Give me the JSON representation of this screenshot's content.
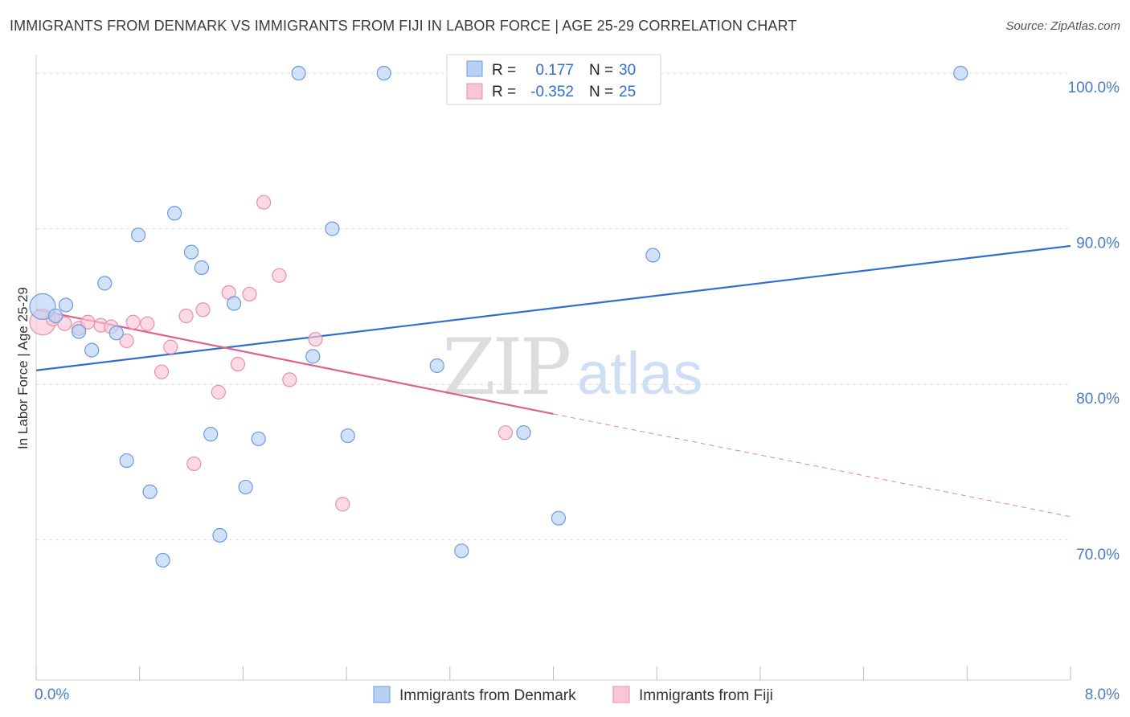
{
  "title": "IMMIGRANTS FROM DENMARK VS IMMIGRANTS FROM FIJI IN LABOR FORCE | AGE 25-29 CORRELATION CHART",
  "source": "Source: ZipAtlas.com",
  "watermark": {
    "zip": "ZIP",
    "atlas": "atlas"
  },
  "colors": {
    "denmark_fill": "#b8d1f3",
    "denmark_stroke": "#6a9be0",
    "denmark_line": "#2f6fd0",
    "fiji_fill": "#f9c6d5",
    "fiji_stroke": "#e88fab",
    "fiji_line": "#e0608c"
  },
  "legend": {
    "rows": [
      {
        "r_label": "R =",
        "r_value": "0.177",
        "n_label": "N =",
        "n_value": "30"
      },
      {
        "r_label": "R =",
        "r_value": "-0.352",
        "n_label": "N =",
        "n_value": "25"
      }
    ]
  },
  "chart_data": {
    "type": "scatter",
    "title": "IMMIGRANTS FROM DENMARK VS IMMIGRANTS FROM FIJI IN LABOR FORCE | AGE 25-29 CORRELATION CHART",
    "xlabel": "",
    "ylabel": "In Labor Force | Age 25-29",
    "xlim": [
      0.0,
      8.0
    ],
    "ylim": [
      61.0,
      101.5
    ],
    "x_tick_labels": [
      "0.0%",
      "8.0%"
    ],
    "y_ticks": [
      70,
      80,
      90,
      100
    ],
    "y_tick_labels": [
      "70.0%",
      "80.0%",
      "90.0%",
      "100.0%"
    ],
    "grid": true,
    "legend_position": "bottom",
    "series": [
      {
        "name": "Immigrants from Denmark",
        "points": [
          [
            0.05,
            85.0
          ],
          [
            0.15,
            84.4
          ],
          [
            0.23,
            85.1
          ],
          [
            0.33,
            83.4
          ],
          [
            0.43,
            82.2
          ],
          [
            0.53,
            86.5
          ],
          [
            0.62,
            83.3
          ],
          [
            0.7,
            75.1
          ],
          [
            0.79,
            89.6
          ],
          [
            0.88,
            73.1
          ],
          [
            0.98,
            68.7
          ],
          [
            1.07,
            91.0
          ],
          [
            1.2,
            88.5
          ],
          [
            1.28,
            87.5
          ],
          [
            1.35,
            76.8
          ],
          [
            1.42,
            70.3
          ],
          [
            1.53,
            85.2
          ],
          [
            1.62,
            73.4
          ],
          [
            1.72,
            76.5
          ],
          [
            2.03,
            100.0
          ],
          [
            2.14,
            81.8
          ],
          [
            2.29,
            90.0
          ],
          [
            2.41,
            76.7
          ],
          [
            2.69,
            100.0
          ],
          [
            3.1,
            81.2
          ],
          [
            3.29,
            69.3
          ],
          [
            3.77,
            76.9
          ],
          [
            4.04,
            71.4
          ],
          [
            4.77,
            88.3
          ],
          [
            7.15,
            100.0
          ]
        ],
        "trend": {
          "x": [
            0.0,
            8.0
          ],
          "y": [
            80.9,
            88.9
          ]
        }
      },
      {
        "name": "Immigrants from Fiji",
        "points": [
          [
            0.05,
            84.0
          ],
          [
            0.13,
            84.2
          ],
          [
            0.22,
            83.9
          ],
          [
            0.33,
            83.6
          ],
          [
            0.4,
            84.0
          ],
          [
            0.5,
            83.8
          ],
          [
            0.58,
            83.7
          ],
          [
            0.7,
            82.8
          ],
          [
            0.75,
            84.0
          ],
          [
            0.86,
            83.9
          ],
          [
            0.97,
            80.8
          ],
          [
            1.04,
            82.4
          ],
          [
            1.16,
            84.4
          ],
          [
            1.22,
            74.9
          ],
          [
            1.29,
            84.8
          ],
          [
            1.41,
            79.5
          ],
          [
            1.49,
            85.9
          ],
          [
            1.56,
            81.3
          ],
          [
            1.65,
            85.8
          ],
          [
            1.76,
            91.7
          ],
          [
            1.88,
            87.0
          ],
          [
            1.96,
            80.3
          ],
          [
            2.16,
            82.9
          ],
          [
            2.37,
            72.3
          ],
          [
            3.63,
            76.9
          ]
        ],
        "trend": {
          "x": [
            0.0,
            4.0
          ],
          "y": [
            84.8,
            78.1
          ]
        },
        "trend_extension": {
          "x": [
            4.0,
            8.0
          ],
          "y": [
            78.1,
            71.5
          ]
        }
      }
    ]
  }
}
